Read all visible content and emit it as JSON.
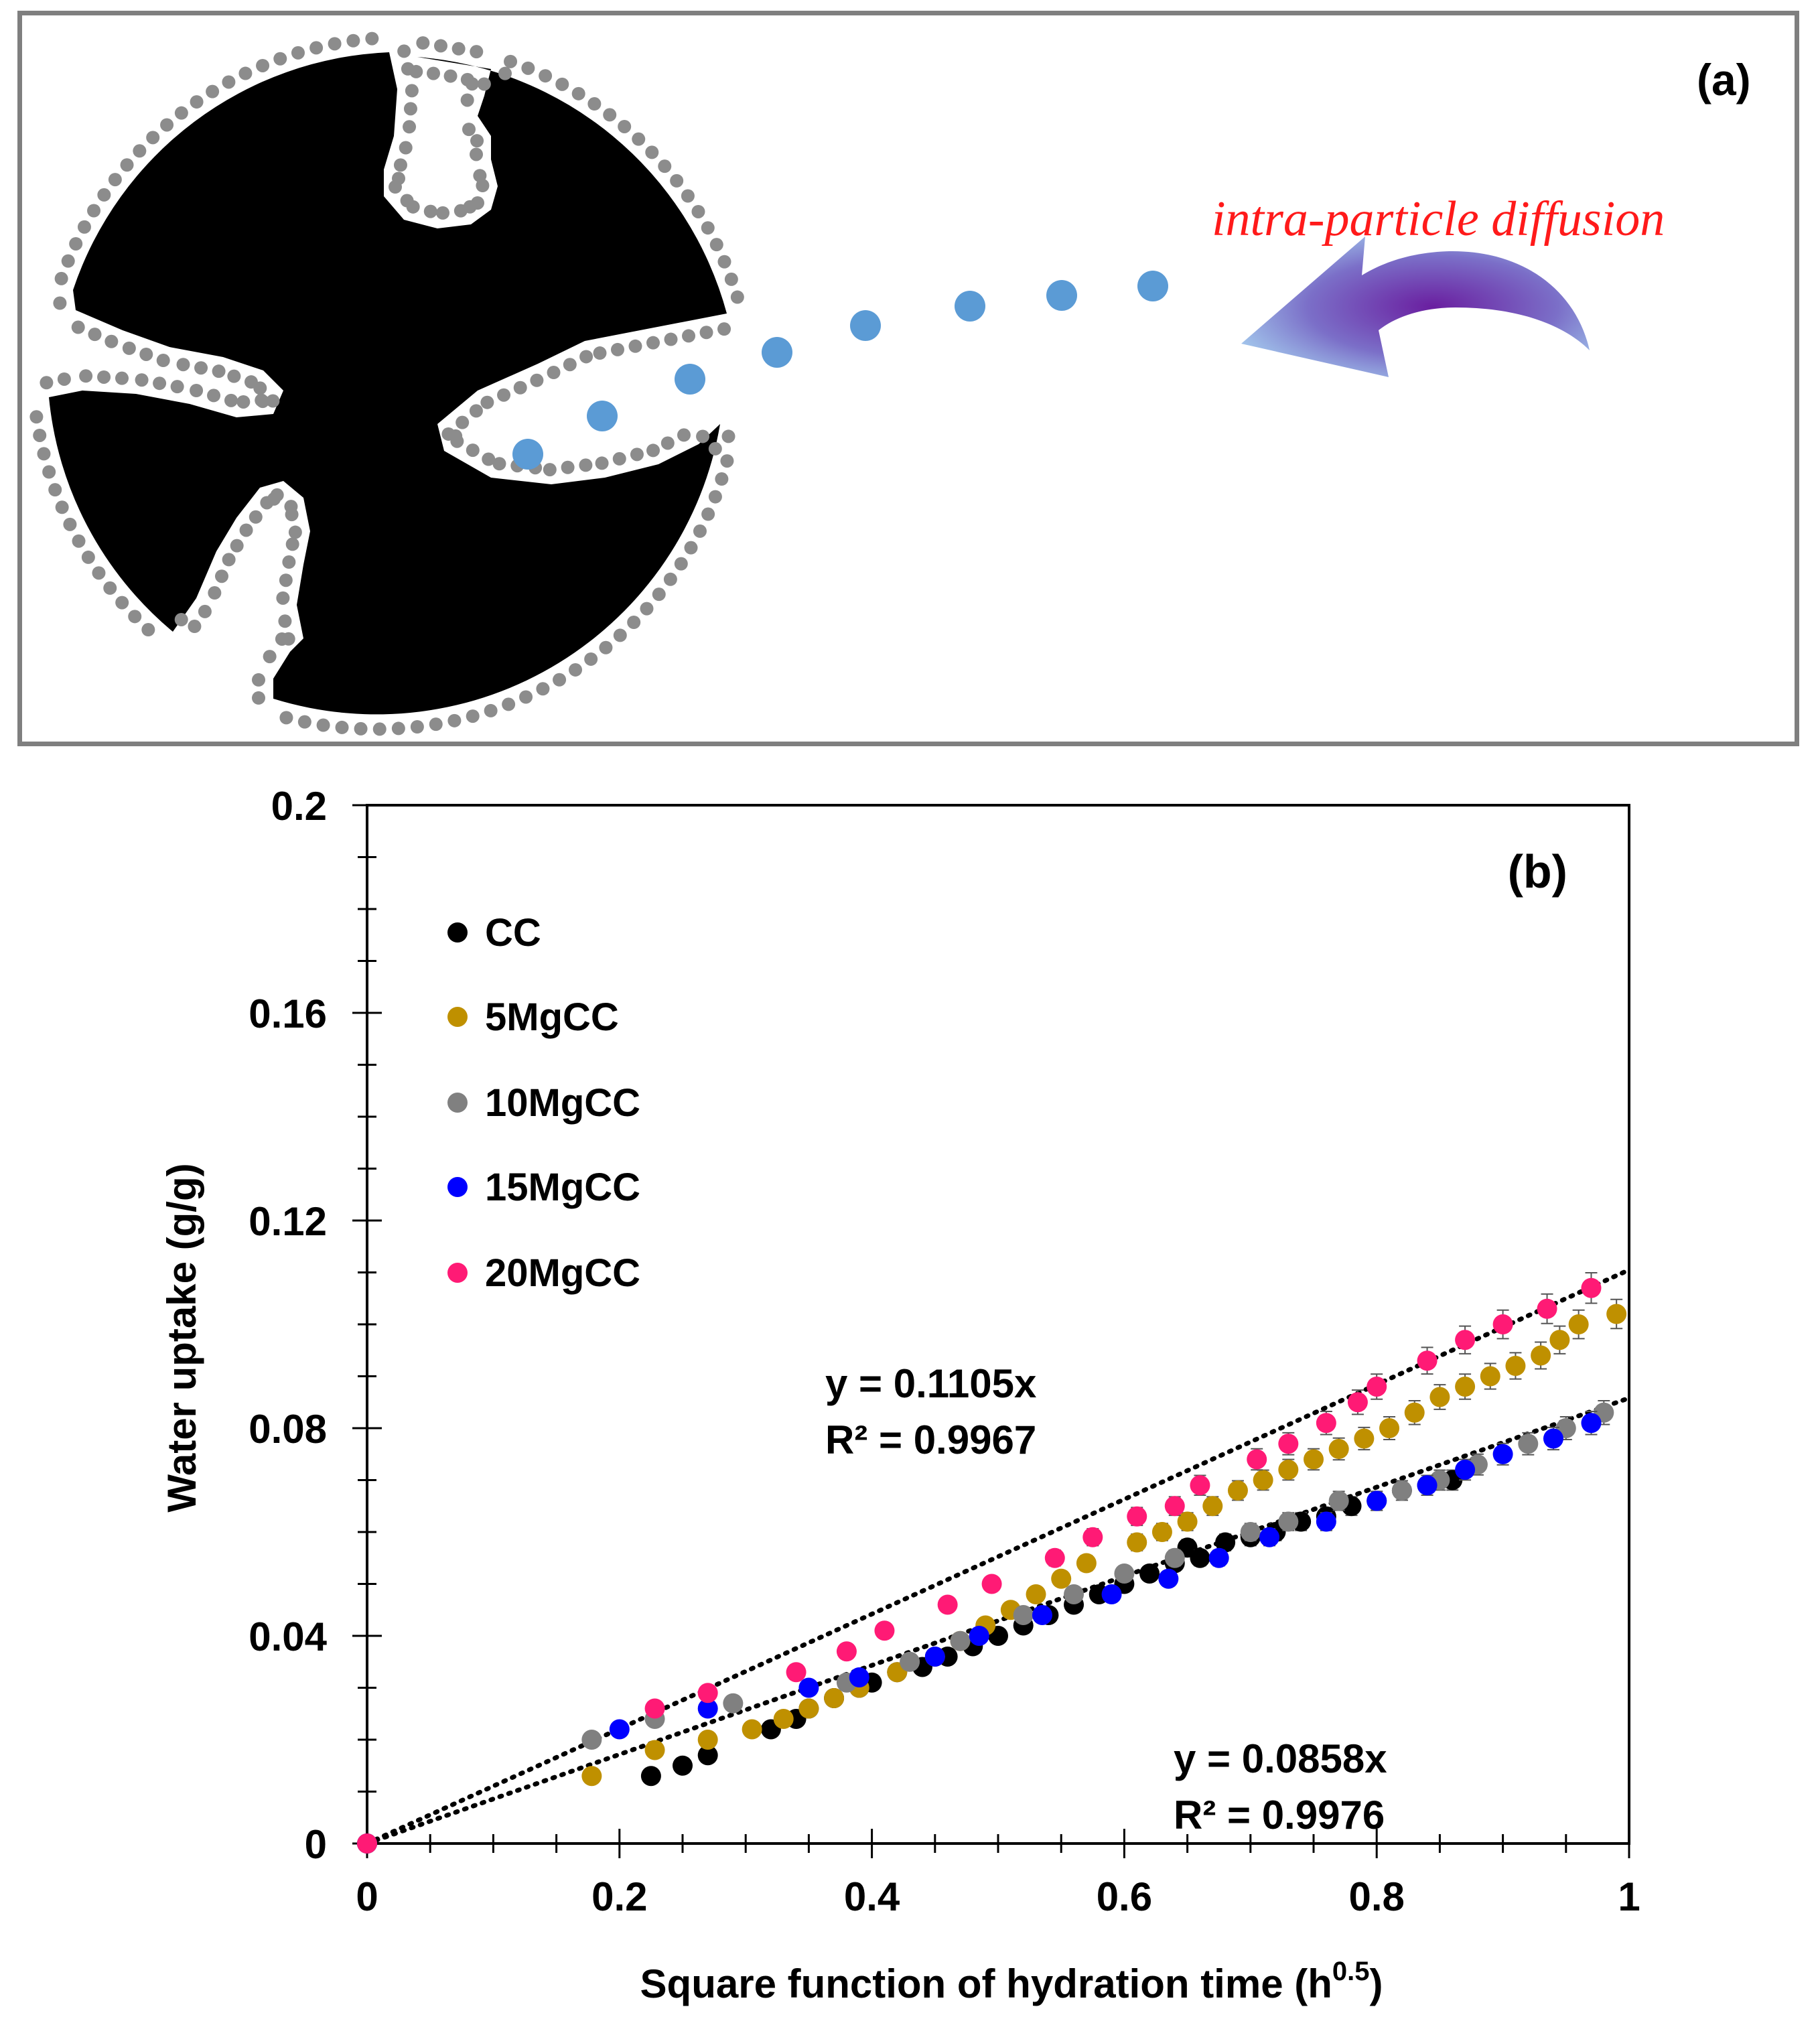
{
  "panel_a": {
    "label": "(a)",
    "annotation": "intra-particle diffusion",
    "colors": {
      "particle": "#000000",
      "adsorbed_layer": "#8c8c8c",
      "water_molecule": "#5b9bd5",
      "annotation": "#ff1a1a",
      "arrow": "#6a3fb0",
      "border": "#7f7f7f"
    },
    "icons": [
      "porous-particle-icon",
      "water-molecule-icon",
      "curved-arrow-icon"
    ]
  },
  "chart_data": {
    "type": "scatter",
    "panel_label": "(b)",
    "xlabel": "Square function of hydration time (h",
    "xlabel_superscript": "0.5",
    "xlabel_suffix": ")",
    "ylabel": "Water uptake (g/g)",
    "xlim": [
      0,
      1
    ],
    "ylim": [
      0,
      0.2
    ],
    "x_ticks": [
      "0",
      "0.2",
      "0.4",
      "0.6",
      "0.8",
      "1"
    ],
    "y_ticks": [
      "0",
      "0.04",
      "0.08",
      "0.12",
      "0.16",
      "0.2"
    ],
    "legend_position": "top-left",
    "series": [
      {
        "name": "CC",
        "color": "#000000",
        "x": [
          0,
          0.225,
          0.25,
          0.27,
          0.32,
          0.34,
          0.35,
          0.37,
          0.39,
          0.4,
          0.42,
          0.44,
          0.46,
          0.48,
          0.5,
          0.52,
          0.54,
          0.56,
          0.58,
          0.6,
          0.62,
          0.64,
          0.65,
          0.66,
          0.68,
          0.7,
          0.72,
          0.74,
          0.76,
          0.78,
          0.8,
          0.82,
          0.84,
          0.86
        ],
        "y": [
          0,
          0.013,
          0.015,
          0.017,
          0.022,
          0.024,
          0.026,
          0.028,
          0.03,
          0.031,
          0.033,
          0.034,
          0.036,
          0.038,
          0.04,
          0.042,
          0.044,
          0.046,
          0.048,
          0.05,
          0.052,
          0.054,
          0.057,
          0.055,
          0.058,
          0.059,
          0.06,
          0.062,
          0.063,
          0.065,
          0.066,
          0.068,
          0.069,
          0.07
        ]
      },
      {
        "name": "5MgCC",
        "color": "#bf9000",
        "x": [
          0,
          0.178,
          0.228,
          0.27,
          0.305,
          0.33,
          0.35,
          0.37,
          0.39,
          0.42,
          0.45,
          0.47,
          0.49,
          0.51,
          0.53,
          0.55,
          0.57,
          0.61,
          0.63,
          0.65,
          0.67,
          0.69,
          0.71,
          0.73,
          0.75,
          0.77,
          0.79,
          0.81,
          0.83,
          0.85,
          0.87,
          0.89,
          0.91,
          0.93,
          0.945,
          0.96,
          0.99
        ],
        "y": [
          0,
          0.013,
          0.018,
          0.02,
          0.022,
          0.024,
          0.026,
          0.028,
          0.03,
          0.033,
          0.036,
          0.039,
          0.042,
          0.045,
          0.048,
          0.051,
          0.054,
          0.058,
          0.06,
          0.062,
          0.065,
          0.068,
          0.07,
          0.072,
          0.074,
          0.076,
          0.078,
          0.08,
          0.083,
          0.086,
          0.088,
          0.09,
          0.092,
          0.094,
          0.097,
          0.1,
          0.102
        ]
      },
      {
        "name": "10MgCC",
        "color": "#808080",
        "x": [
          0,
          0.178,
          0.228,
          0.29,
          0.38,
          0.43,
          0.47,
          0.52,
          0.56,
          0.6,
          0.64,
          0.7,
          0.73,
          0.77,
          0.82,
          0.85,
          0.88,
          0.92,
          0.95,
          0.98
        ],
        "y": [
          0,
          0.02,
          0.024,
          0.027,
          0.031,
          0.035,
          0.039,
          0.044,
          0.048,
          0.052,
          0.055,
          0.06,
          0.062,
          0.066,
          0.068,
          0.07,
          0.073,
          0.077,
          0.08,
          0.083
        ]
      },
      {
        "name": "15MgCC",
        "color": "#0000ff",
        "x": [
          0,
          0.2,
          0.27,
          0.35,
          0.39,
          0.45,
          0.485,
          0.535,
          0.59,
          0.635,
          0.675,
          0.715,
          0.76,
          0.8,
          0.84,
          0.87,
          0.9,
          0.94,
          0.97
        ],
        "y": [
          0,
          0.022,
          0.026,
          0.03,
          0.032,
          0.036,
          0.04,
          0.044,
          0.048,
          0.051,
          0.055,
          0.059,
          0.062,
          0.066,
          0.069,
          0.072,
          0.075,
          0.078,
          0.081
        ]
      },
      {
        "name": "20MgCC",
        "color": "#ff1a75",
        "x": [
          0,
          0.228,
          0.27,
          0.34,
          0.38,
          0.41,
          0.46,
          0.495,
          0.545,
          0.575,
          0.61,
          0.64,
          0.66,
          0.705,
          0.73,
          0.76,
          0.785,
          0.8,
          0.84,
          0.87,
          0.9,
          0.935,
          0.97
        ],
        "y": [
          0,
          0.026,
          0.029,
          0.033,
          0.037,
          0.041,
          0.046,
          0.05,
          0.055,
          0.059,
          0.063,
          0.065,
          0.069,
          0.074,
          0.077,
          0.081,
          0.085,
          0.088,
          0.093,
          0.097,
          0.1,
          0.103,
          0.107
        ]
      }
    ],
    "trendlines": [
      {
        "slope": 0.1105,
        "equation": "y = 0.1105x",
        "r2": "R² = 0.9967"
      },
      {
        "slope": 0.0858,
        "equation": "y = 0.0858x",
        "r2": "R² = 0.9976"
      }
    ]
  }
}
